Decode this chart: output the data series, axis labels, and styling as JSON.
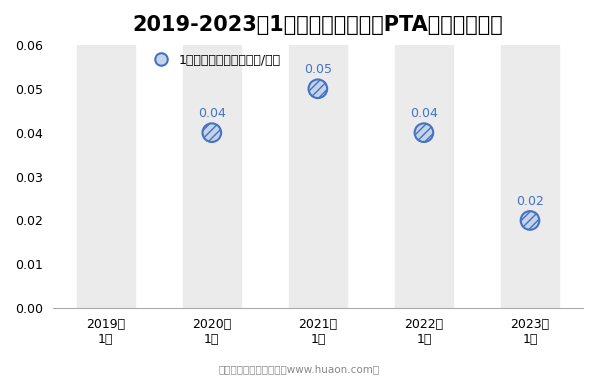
{
  "title": "2019-2023年1月郑州商品交易所PTA期权成交均价",
  "categories": [
    "2019年\n1月",
    "2020年\n1月",
    "2021年\n1月",
    "2022年\n1月",
    "2023年\n1月"
  ],
  "values": [
    null,
    0.04,
    0.05,
    0.04,
    0.02
  ],
  "ylim": [
    0,
    0.06
  ],
  "yticks": [
    0,
    0.01,
    0.02,
    0.03,
    0.04,
    0.05,
    0.06
  ],
  "legend_label": "1月期权成交均价（万元/手）",
  "marker_color": "#4472C4",
  "marker_face_color": "#C5D3E8",
  "band_color": "#EBEBEB",
  "bg_color": "#FFFFFF",
  "footer_text": "制图：华经产业研究院（www.huaon.com）",
  "title_fontsize": 15,
  "label_fontsize": 9,
  "marker_size": 180
}
